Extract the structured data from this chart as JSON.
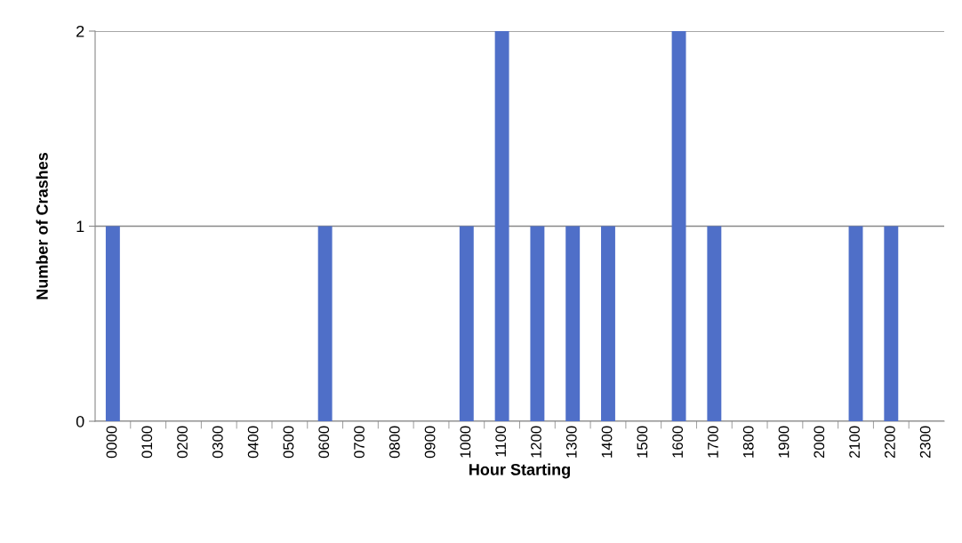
{
  "chart_data": {
    "type": "bar",
    "xlabel": "Hour Starting",
    "ylabel": "Number of Crashes",
    "categories": [
      "0000",
      "0100",
      "0200",
      "0300",
      "0400",
      "0500",
      "0600",
      "0700",
      "0800",
      "0900",
      "1000",
      "1100",
      "1200",
      "1300",
      "1400",
      "1500",
      "1600",
      "1700",
      "1800",
      "1900",
      "2000",
      "2100",
      "2200",
      "2300"
    ],
    "values": [
      1,
      0,
      0,
      0,
      0,
      0,
      1,
      0,
      0,
      0,
      1,
      2,
      1,
      1,
      1,
      0,
      2,
      1,
      0,
      0,
      0,
      1,
      1,
      0
    ],
    "color": "#4f6fc8",
    "ylim": [
      0,
      2
    ],
    "yticks": [
      0,
      1,
      2
    ],
    "grid": "y"
  }
}
